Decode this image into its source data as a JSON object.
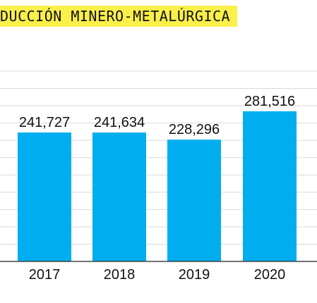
{
  "title": "DUCCIÓN MINERO-METALÚRGICA",
  "colors": {
    "banner": "#fbf04a",
    "bar": "#00aeef",
    "grid": "#d9d9d9",
    "axis": "#444444",
    "text": "#111111"
  },
  "chart_data": {
    "type": "bar",
    "title": "DUCCIÓN MINERO-METALÚRGICA",
    "categories": [
      "2017",
      "2018",
      "2019",
      "2020"
    ],
    "values": [
      241727,
      241634,
      228296,
      281516
    ],
    "value_labels": [
      "241,727",
      "241,634",
      "228,296",
      "281,516"
    ],
    "xlabel": "",
    "ylabel": "",
    "ylim": [
      0,
      300000
    ],
    "grid": true,
    "legend": "none"
  }
}
